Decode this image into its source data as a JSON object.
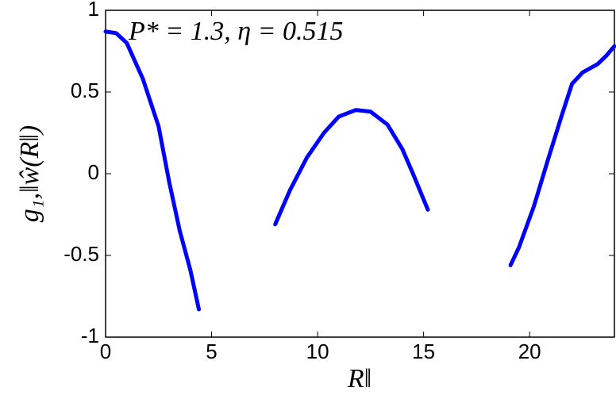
{
  "chart_data": {
    "type": "line",
    "annotation": "P* = 1.3, η = 0.515",
    "xlabel": "R‖",
    "ylabel": "g₁,‖ŵ(R‖)",
    "x": [
      0,
      0.5,
      1,
      1.76,
      2.5,
      3,
      3.5,
      4,
      4.4,
      null,
      8,
      8.7,
      9.5,
      10.3,
      11,
      11.8,
      12.5,
      13.3,
      14,
      14.5,
      15.2,
      null,
      19.1,
      19.5,
      20.2,
      20.9,
      21.5,
      22,
      22.5,
      23.2,
      23.6,
      24
    ],
    "series": [
      {
        "color": "#0000ff",
        "values": [
          0.87,
          0.86,
          0.8,
          0.58,
          0.29,
          -0.05,
          -0.35,
          -0.59,
          -0.83,
          null,
          -0.31,
          -0.1,
          0.1,
          0.25,
          0.35,
          0.39,
          0.38,
          0.3,
          0.15,
          0,
          -0.22,
          null,
          -0.56,
          -0.45,
          -0.2,
          0.1,
          0.35,
          0.55,
          0.62,
          0.67,
          0.72,
          0.78
        ]
      }
    ],
    "xlim": [
      0,
      24
    ],
    "xticks": [
      0,
      5,
      10,
      15,
      20
    ],
    "ylim": [
      -1,
      1
    ],
    "yticks": [
      -1,
      -0.5,
      0,
      0.5,
      1
    ],
    "grid": false
  }
}
